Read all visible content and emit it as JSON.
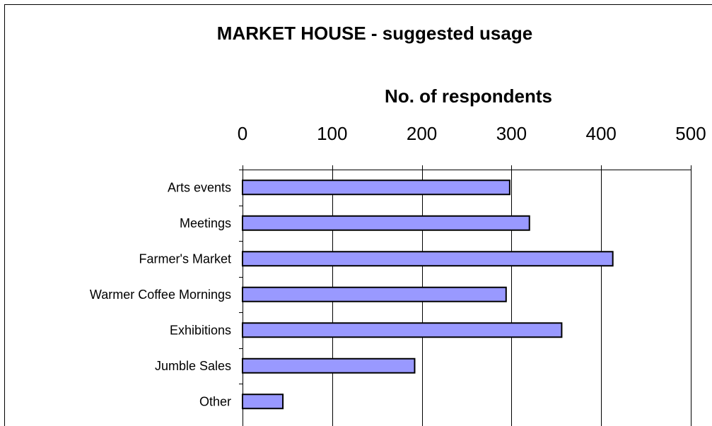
{
  "chart_data": {
    "type": "bar",
    "orientation": "horizontal",
    "title": "MARKET HOUSE - suggested usage",
    "xlabel": "No. of respondents",
    "ylabel": "",
    "xlim": [
      0,
      500
    ],
    "ticks": [
      0,
      100,
      200,
      300,
      400,
      500
    ],
    "tick_labels": [
      "0",
      "100",
      "200",
      "300",
      "400",
      "500"
    ],
    "categories": [
      "Arts events",
      "Meetings",
      "Farmer's Market",
      "Warmer Coffee Mornings",
      "Exhibitions",
      "Jumble Sales",
      "Other"
    ],
    "values": [
      298,
      320,
      413,
      294,
      356,
      192,
      45
    ],
    "axis_position": "top",
    "grid": true,
    "legend": "none",
    "bar_color": "#9999ff",
    "bar_edge_color": "#000000"
  }
}
